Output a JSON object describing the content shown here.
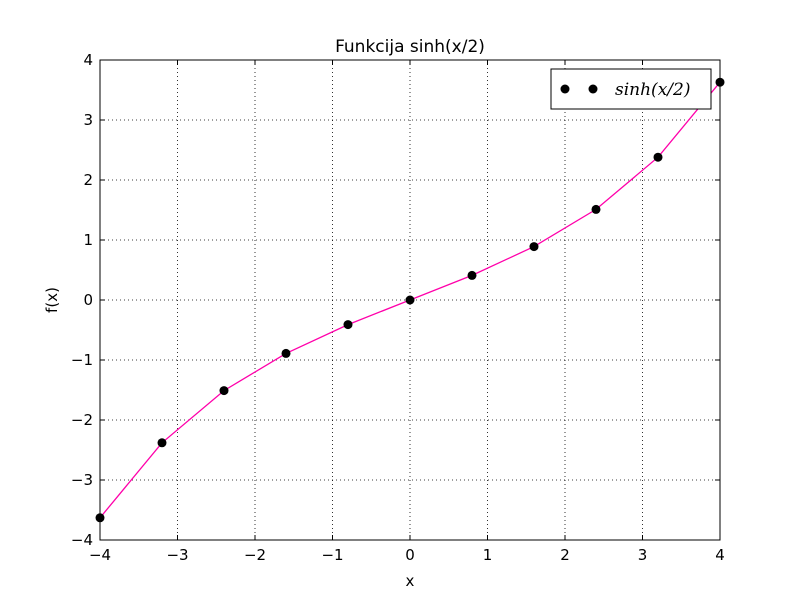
{
  "chart_data": {
    "type": "line",
    "title": "Funkcija sinh(x/2)",
    "xlabel": "x",
    "ylabel": "f(x)",
    "xlim": [
      -4,
      4
    ],
    "ylim": [
      -4,
      4
    ],
    "grid": true,
    "legend_position": "top-right",
    "x_ticks": [
      "−4",
      "−3",
      "−2",
      "−1",
      "0",
      "1",
      "2",
      "3",
      "4"
    ],
    "y_ticks": [
      "4",
      "3",
      "2",
      "1",
      "0",
      "−1",
      "−2",
      "−3",
      "−4"
    ],
    "series": [
      {
        "kind": "line",
        "color": "#ff00aa",
        "x": [
          -4.0,
          -3.2,
          -2.4,
          -1.6,
          -0.8,
          0.0,
          0.8,
          1.6,
          2.4,
          3.2,
          4.0
        ],
        "y": [
          -3.63,
          -2.38,
          -1.51,
          -0.89,
          -0.41,
          0.0,
          0.41,
          0.89,
          1.51,
          2.38,
          3.63
        ]
      },
      {
        "kind": "points",
        "name": "sinh(x/2)",
        "color": "#000000",
        "x": [
          -4.0,
          -3.2,
          -2.4,
          -1.6,
          -0.8,
          0.0,
          0.8,
          1.6,
          2.4,
          3.2,
          4.0
        ],
        "y": [
          -3.63,
          -2.38,
          -1.51,
          -0.89,
          -0.41,
          0.0,
          0.41,
          0.89,
          1.51,
          2.38,
          3.63
        ]
      }
    ]
  }
}
